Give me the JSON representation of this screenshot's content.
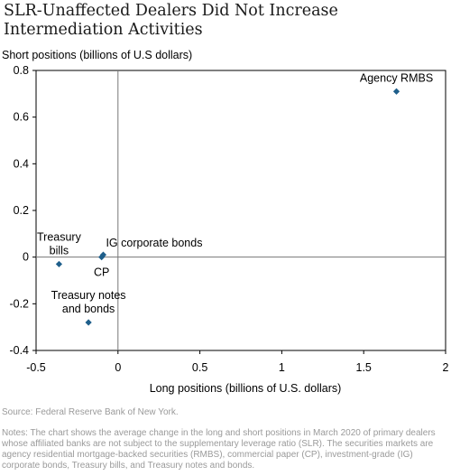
{
  "title": "SLR-Unaffected Dealers Did Not Increase Intermediation Activities",
  "source": "Source: Federal Reserve Bank of New York.",
  "notes": "Notes: The chart shows the average change in the long and short positions in March 2020 of primary dealers whose affiliated banks are not subject to the supplementary leverage ratio (SLR). The securities markets are agency residential mortgage-backed securities (RMBS), commercial paper (CP), investment-grade (IG) corporate bonds, Treasury bills, and Treasury notes and bonds.",
  "colors": {
    "marker": "#1f5f8b",
    "axis": "#000000",
    "zero_line": "#777777"
  },
  "chart_data": {
    "type": "scatter",
    "title": "SLR-Unaffected Dealers Did Not Increase Intermediation Activities",
    "xlabel": "Long positions (billions of U.S. dollars)",
    "ylabel": "Short positions (billions of U.S dollars)",
    "xlim": [
      -0.5,
      2
    ],
    "ylim": [
      -0.4,
      0.8
    ],
    "xticks": [
      -0.5,
      0,
      0.5,
      1,
      1.5,
      2
    ],
    "xtick_labels": [
      "-0.5",
      "0",
      "0.5",
      "1",
      "1.5",
      "2"
    ],
    "yticks": [
      -0.4,
      -0.2,
      0,
      0.2,
      0.4,
      0.6,
      0.8
    ],
    "ytick_labels": [
      "-0.4",
      "-0.2",
      "0",
      "0.2",
      "0.4",
      "0.6",
      "0.8"
    ],
    "grid": false,
    "points": [
      {
        "name": "Agency RMBS",
        "label_lines": [
          "Agency RMBS"
        ],
        "x": 1.7,
        "y": 0.71,
        "label_pos": "above"
      },
      {
        "name": "Treasury bills",
        "label_lines": [
          "Treasury",
          "bills"
        ],
        "x": -0.36,
        "y": -0.03,
        "label_pos": "above"
      },
      {
        "name": "IG corporate bonds",
        "label_lines": [
          "IG corporate bonds"
        ],
        "x": -0.09,
        "y": 0.01,
        "label_pos": "right"
      },
      {
        "name": "CP",
        "label_lines": [
          "CP"
        ],
        "x": -0.1,
        "y": 0.0,
        "label_pos": "below"
      },
      {
        "name": "Treasury notes and bonds",
        "label_lines": [
          "Treasury notes",
          "and bonds"
        ],
        "x": -0.18,
        "y": -0.28,
        "label_pos": "above"
      }
    ]
  }
}
